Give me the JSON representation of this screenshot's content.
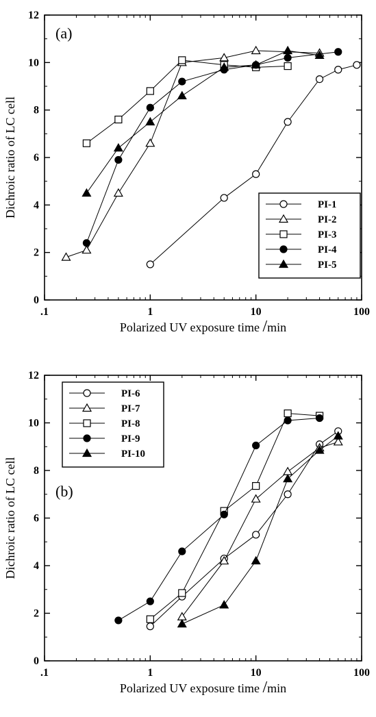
{
  "chart_data": [
    {
      "type": "line",
      "panel_label": "(a)",
      "xlabel": "Polarized UV exposure time",
      "xlabel_unit": "min",
      "ylabel": "Dichroic ratio of LC cell",
      "xscale": "log",
      "xlim": [
        0.1,
        100
      ],
      "ylim": [
        0,
        12
      ],
      "xticks": [
        ".1",
        "1",
        "10",
        "100"
      ],
      "yticks": [
        "0",
        "2",
        "4",
        "6",
        "8",
        "10",
        "12"
      ],
      "legend_position": "bottom-right",
      "grid": false,
      "series": [
        {
          "name": "PI-1",
          "marker": "circle-open",
          "x": [
            1,
            5,
            10,
            20,
            40,
            60,
            90
          ],
          "y": [
            1.5,
            4.3,
            5.3,
            7.5,
            9.3,
            9.7,
            9.9
          ]
        },
        {
          "name": "PI-2",
          "marker": "triangle-open",
          "x": [
            0.16,
            0.25,
            0.5,
            1,
            2,
            5,
            10,
            40
          ],
          "y": [
            1.8,
            2.1,
            4.5,
            6.6,
            10.0,
            10.2,
            10.5,
            10.4
          ]
        },
        {
          "name": "PI-3",
          "marker": "square-open",
          "x": [
            0.25,
            0.5,
            1,
            2,
            5,
            10,
            20
          ],
          "y": [
            6.6,
            7.6,
            8.8,
            10.1,
            9.9,
            9.8,
            9.85
          ]
        },
        {
          "name": "PI-4",
          "marker": "circle-filled",
          "x": [
            0.25,
            0.5,
            1,
            2,
            5,
            10,
            20,
            60
          ],
          "y": [
            2.4,
            5.9,
            8.1,
            9.2,
            9.7,
            9.9,
            10.2,
            10.45
          ]
        },
        {
          "name": "PI-5",
          "marker": "triangle-filled",
          "x": [
            0.25,
            0.5,
            1,
            2,
            5,
            10,
            20,
            40
          ],
          "y": [
            4.5,
            6.4,
            7.5,
            8.6,
            9.8,
            9.9,
            10.5,
            10.3
          ]
        }
      ]
    },
    {
      "type": "line",
      "panel_label": "(b)",
      "xlabel": "Polarized UV exposure time",
      "xlabel_unit": "min",
      "ylabel": "Dichroic ratio of LC cell",
      "xscale": "log",
      "xlim": [
        0.1,
        100
      ],
      "ylim": [
        0,
        12
      ],
      "xticks": [
        ".1",
        "1",
        "10",
        "100"
      ],
      "yticks": [
        "0",
        "2",
        "4",
        "6",
        "8",
        "10",
        "12"
      ],
      "legend_position": "top-left",
      "grid": false,
      "series": [
        {
          "name": "PI-6",
          "marker": "circle-open",
          "x": [
            1,
            2,
            5,
            10,
            20,
            40,
            60
          ],
          "y": [
            1.45,
            2.7,
            4.3,
            5.3,
            7.0,
            9.1,
            9.65
          ]
        },
        {
          "name": "PI-7",
          "marker": "triangle-open",
          "x": [
            2,
            5,
            10,
            20,
            40,
            60
          ],
          "y": [
            1.85,
            4.2,
            6.8,
            7.95,
            8.95,
            9.2
          ]
        },
        {
          "name": "PI-8",
          "marker": "square-open",
          "x": [
            1,
            2,
            5,
            10,
            20,
            40
          ],
          "y": [
            1.75,
            2.85,
            6.3,
            7.35,
            10.4,
            10.3
          ]
        },
        {
          "name": "PI-9",
          "marker": "circle-filled",
          "x": [
            0.5,
            1,
            2,
            5,
            10,
            20,
            40
          ],
          "y": [
            1.7,
            2.5,
            4.6,
            6.15,
            9.05,
            10.1,
            10.2
          ]
        },
        {
          "name": "PI-10",
          "marker": "triangle-filled",
          "x": [
            2,
            5,
            10,
            20,
            40,
            60
          ],
          "y": [
            1.55,
            2.35,
            4.2,
            7.65,
            8.85,
            9.45
          ]
        }
      ]
    }
  ]
}
